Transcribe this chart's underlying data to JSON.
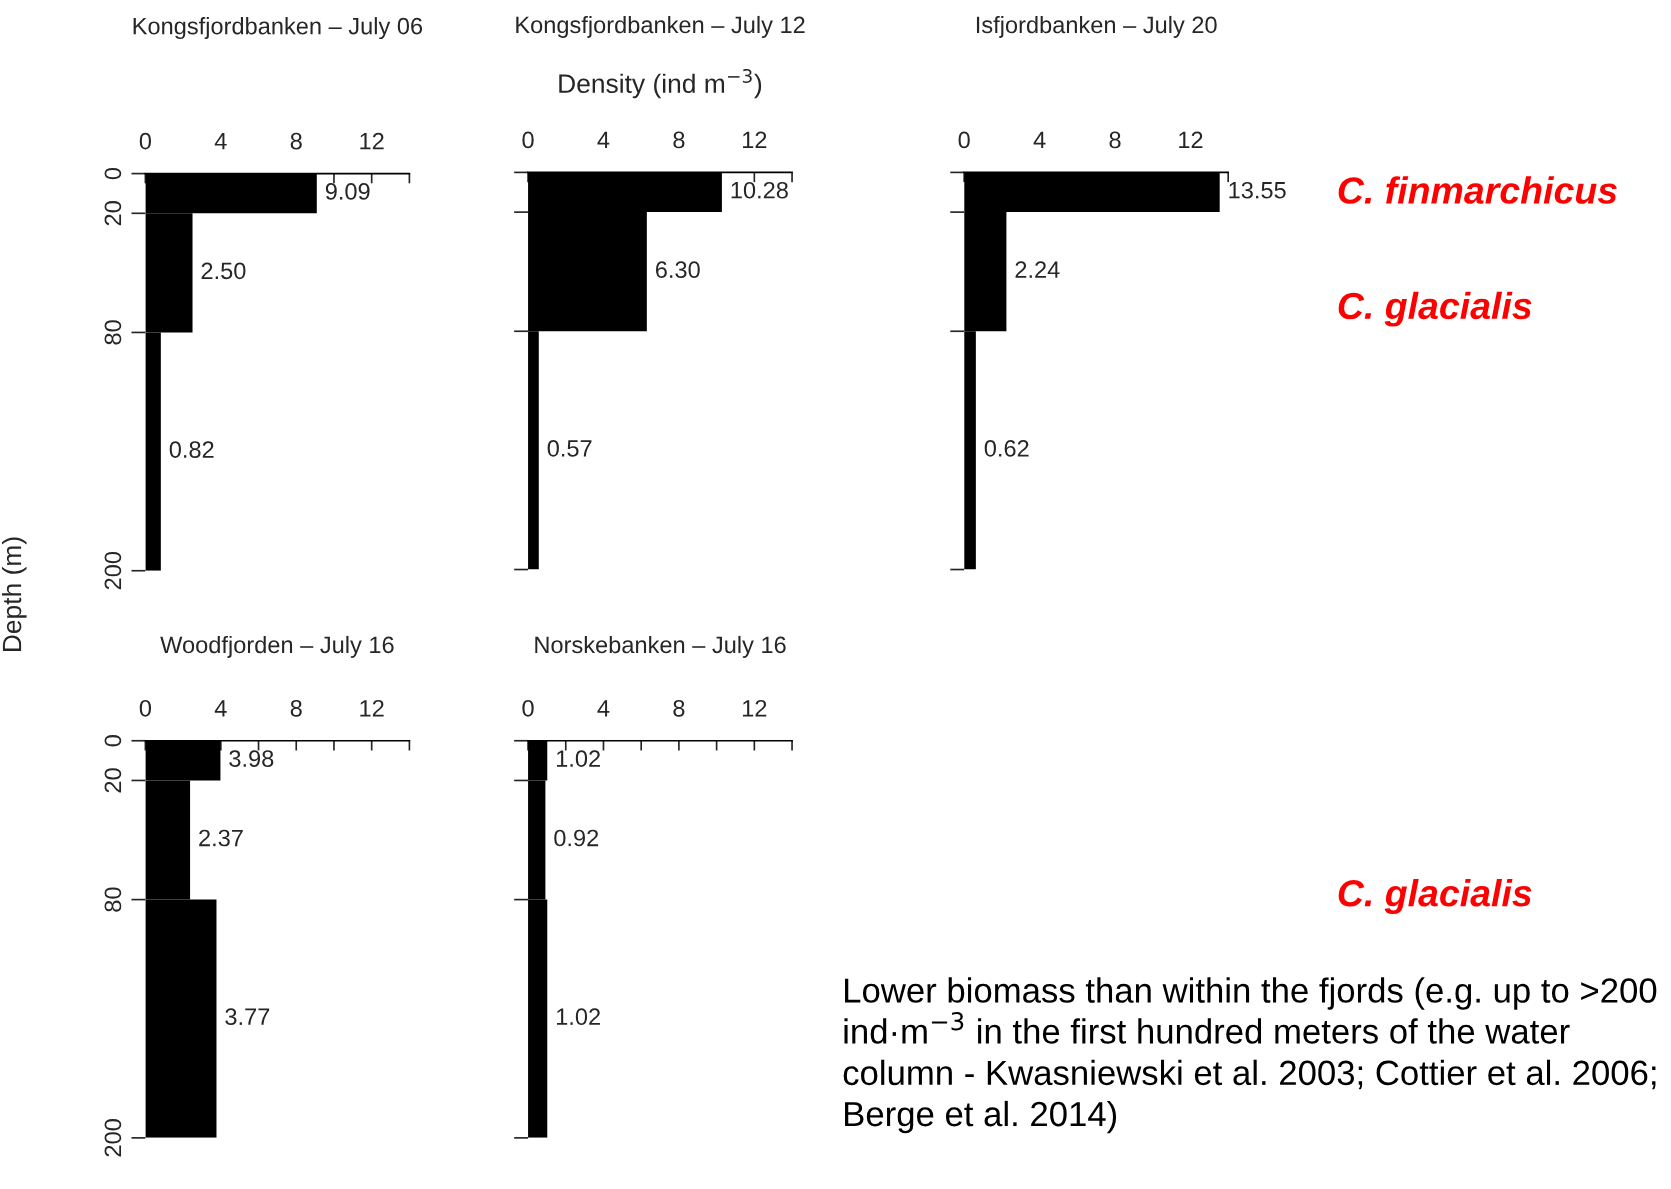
{
  "chart_data": [
    {
      "type": "histogram",
      "orientation": "horizontal",
      "title": "Kongsfjordbanken – July 06",
      "ylabel": "Depth (m)",
      "bins": [
        0,
        20,
        80,
        200
      ],
      "values": [
        9.09,
        2.5,
        0.82
      ],
      "value_labels": [
        "9.09",
        "2.50",
        "0.82"
      ],
      "color": "#000000",
      "xlim": [
        0,
        14
      ],
      "xticks": [
        0,
        {
          "value": 2,
          "label": null
        },
        4,
        {
          "value": 6,
          "label": null
        },
        8,
        {
          "value": 10,
          "label": null
        },
        12,
        {
          "value": 14,
          "label": null
        }
      ],
      "ylim": [
        200,
        0
      ],
      "yticks": [
        0,
        20,
        80,
        200
      ]
    },
    {
      "type": "histogram",
      "orientation": "horizontal",
      "title": "Kongsfjordbanken – July 12",
      "xlabel": "Density (ind m$^{−3}$)",
      "bins": [
        0,
        20,
        80,
        200
      ],
      "values": [
        10.28,
        6.3,
        0.57
      ],
      "value_labels": [
        "10.28",
        "6.30",
        "0.57"
      ],
      "color": "#000000",
      "xlim": [
        0,
        14
      ],
      "xticks": [
        0,
        {
          "value": 2,
          "label": null
        },
        4,
        {
          "value": 6,
          "label": null
        },
        8,
        {
          "value": 10,
          "label": null
        },
        12,
        {
          "value": 14,
          "label": null
        }
      ],
      "ylim": [
        200,
        0
      ],
      "yticks": [
        0,
        20,
        80,
        200
      ],
      "tick_labels": "x"
    },
    {
      "type": "histogram",
      "orientation": "horizontal",
      "title": "Isfjordbanken – July 20",
      "bins": [
        0,
        20,
        80,
        200
      ],
      "values": [
        13.55,
        2.24,
        0.62
      ],
      "value_labels": [
        "13.55",
        "2.24",
        "0.62"
      ],
      "color": "#000000",
      "xlim": [
        0,
        14
      ],
      "xticks": [
        0,
        {
          "value": 2,
          "label": null
        },
        4,
        {
          "value": 6,
          "label": null
        },
        8,
        {
          "value": 10,
          "label": null
        },
        12,
        {
          "value": 14,
          "label": null
        }
      ],
      "ylim": [
        200,
        0
      ],
      "yticks": [
        0,
        20,
        80,
        200
      ],
      "tick_labels": "x"
    },
    {
      "type": "histogram",
      "orientation": "horizontal",
      "title": "Woodfjorden – July 16",
      "bins": [
        0,
        20,
        80,
        200
      ],
      "values": [
        3.98,
        2.37,
        3.77
      ],
      "value_labels": [
        "3.98",
        "2.37",
        "3.77"
      ],
      "color": "#000000",
      "xlim": [
        0,
        14
      ],
      "xticks": [
        0,
        {
          "value": 2,
          "label": null
        },
        4,
        {
          "value": 6,
          "label": null
        },
        8,
        {
          "value": 10,
          "label": null
        },
        12,
        {
          "value": 14,
          "label": null
        }
      ],
      "ylim": [
        200,
        0
      ],
      "yticks": [
        0,
        20,
        80,
        200
      ]
    },
    {
      "type": "histogram",
      "orientation": "horizontal",
      "title": "Norskebanken – July 16",
      "bins": [
        0,
        20,
        80,
        200
      ],
      "values": [
        1.02,
        0.92,
        1.02
      ],
      "value_labels": [
        "1.02",
        "0.92",
        "1.02"
      ],
      "color": "#000000",
      "xlim": [
        0,
        14
      ],
      "xticks": [
        0,
        {
          "value": 2,
          "label": null
        },
        4,
        {
          "value": 6,
          "label": null
        },
        8,
        {
          "value": 10,
          "label": null
        },
        12,
        {
          "value": 14,
          "label": null
        }
      ],
      "ylim": [
        200,
        0
      ],
      "yticks": [
        0,
        20,
        80,
        200
      ],
      "tick_labels": "x"
    },
    {
      "type": "other",
      "annotations": [
        "C. finmarchicus",
        "C. glacialis",
        "C. glacialis",
        "Lower biomass than within the fjords (e.g. up to >200 ind·m$^{−3}$ in the first hundred meters of the water column - Kwasniewski et al. 2003; Cottier et al. 2006; Berge et al. 2014)"
      ]
    }
  ]
}
